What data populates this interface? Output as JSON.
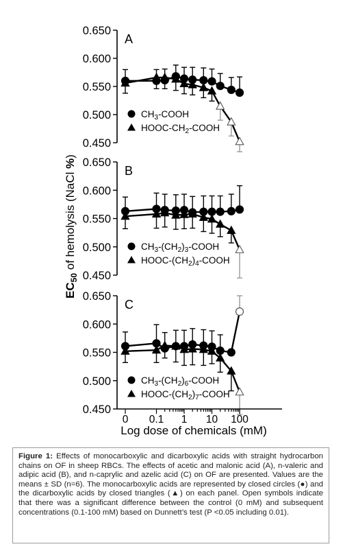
{
  "figure": {
    "ylabel_parts": [
      "EC",
      "50",
      " of hemolysis (NaCl ",
      "%",
      ")"
    ],
    "xlabel": "Log dose of chemicals (mM)",
    "xticks": [
      "0",
      "0.1",
      "1",
      "10",
      "100"
    ]
  },
  "chart_data": [
    {
      "type": "line",
      "panel_label": "A",
      "x": [
        0,
        0.1,
        0.2,
        0.5,
        1,
        2,
        5,
        10,
        20,
        50,
        100
      ],
      "ylim": [
        0.45,
        0.65
      ],
      "yticks": [
        "0.450",
        "0.500",
        "0.550",
        "0.600",
        "0.650"
      ],
      "series": [
        {
          "name": "CH3-COOH",
          "name_parts": [
            [
              "CH",
              ""
            ],
            [
              "3",
              "sub"
            ],
            [
              "-COOH",
              ""
            ]
          ],
          "marker": "circle",
          "values": [
            0.56,
            0.56,
            0.561,
            0.568,
            0.564,
            0.562,
            0.561,
            0.559,
            0.551,
            0.544,
            0.539
          ],
          "errors": [
            0.02,
            0.02,
            0.02,
            0.02,
            0.02,
            0.022,
            0.022,
            0.022,
            0.022,
            0.022,
            0.028
          ],
          "open": [
            false,
            false,
            false,
            false,
            false,
            false,
            false,
            false,
            false,
            false,
            false
          ]
        },
        {
          "name": "HOOC-CH2-COOH",
          "name_parts": [
            [
              "HOOC-CH",
              ""
            ],
            [
              "2",
              "sub"
            ],
            [
              "-COOH",
              ""
            ]
          ],
          "marker": "triangle",
          "values": [
            0.556,
            0.566,
            0.566,
            0.563,
            0.555,
            0.553,
            0.548,
            0.542,
            0.515,
            0.487,
            0.452
          ],
          "errors": [
            0.018,
            0.02,
            0.02,
            0.02,
            0.018,
            0.018,
            0.018,
            0.018,
            0.025,
            0.025,
            0.018
          ],
          "open": [
            false,
            false,
            false,
            false,
            false,
            false,
            false,
            false,
            true,
            true,
            true
          ]
        }
      ]
    },
    {
      "type": "line",
      "panel_label": "B",
      "x": [
        0,
        0.1,
        0.2,
        0.5,
        1,
        2,
        5,
        10,
        20,
        50,
        100
      ],
      "ylim": [
        0.45,
        0.65
      ],
      "yticks": [
        "0.450",
        "0.500",
        "0.550",
        "0.600",
        "0.650"
      ],
      "series": [
        {
          "name": "CH3-(CH2)3-COOH",
          "name_parts": [
            [
              "CH",
              ""
            ],
            [
              "3",
              "sub"
            ],
            [
              "-(CH",
              ""
            ],
            [
              "2",
              "sub"
            ],
            [
              ")",
              ""
            ],
            [
              "3",
              "sub"
            ],
            [
              "-COOH",
              ""
            ]
          ],
          "marker": "circle",
          "values": [
            0.563,
            0.567,
            0.565,
            0.564,
            0.565,
            0.561,
            0.562,
            0.562,
            0.562,
            0.563,
            0.566
          ],
          "errors": [
            0.025,
            0.028,
            0.028,
            0.028,
            0.028,
            0.028,
            0.028,
            0.028,
            0.028,
            0.03,
            0.042
          ],
          "open": [
            false,
            false,
            false,
            false,
            false,
            false,
            false,
            false,
            false,
            false,
            false
          ]
        },
        {
          "name": "HOOC-(CH2)4-COOH",
          "name_parts": [
            [
              "HOOC-(CH",
              ""
            ],
            [
              "2",
              "sub"
            ],
            [
              ")",
              ""
            ],
            [
              "4",
              "sub"
            ],
            [
              "-COOH",
              ""
            ]
          ],
          "marker": "triangle",
          "values": [
            0.554,
            0.558,
            0.56,
            0.556,
            0.557,
            0.558,
            0.552,
            0.549,
            0.54,
            0.529,
            0.495
          ],
          "errors": [
            0.022,
            0.025,
            0.025,
            0.025,
            0.025,
            0.025,
            0.025,
            0.025,
            0.022,
            0.022,
            0.05
          ],
          "open": [
            false,
            false,
            false,
            false,
            false,
            false,
            false,
            false,
            false,
            false,
            true
          ]
        }
      ]
    },
    {
      "type": "line",
      "panel_label": "C",
      "x": [
        0,
        0.1,
        0.2,
        0.5,
        1,
        2,
        5,
        10,
        20,
        50,
        100
      ],
      "ylim": [
        0.45,
        0.65
      ],
      "yticks": [
        "0.450",
        "0.500",
        "0.550",
        "0.600",
        "0.650"
      ],
      "series": [
        {
          "name": "CH3-(CH2)6-COOH",
          "name_parts": [
            [
              "CH",
              ""
            ],
            [
              "3",
              "sub"
            ],
            [
              "-(CH",
              ""
            ],
            [
              "2",
              "sub"
            ],
            [
              ")",
              ""
            ],
            [
              "6",
              "sub"
            ],
            [
              "-COOH",
              ""
            ]
          ],
          "marker": "circle",
          "values": [
            0.561,
            0.566,
            0.557,
            0.561,
            0.561,
            0.564,
            0.562,
            0.56,
            0.553,
            0.55,
            0.622
          ],
          "errors": [
            0.025,
            0.033,
            0.028,
            0.028,
            0.028,
            0.028,
            0.028,
            0.028,
            0.028,
            0.0,
            0.028
          ],
          "open": [
            false,
            false,
            false,
            false,
            false,
            false,
            false,
            false,
            false,
            false,
            true
          ]
        },
        {
          "name": "HOOC-(CH2)7-COOH",
          "name_parts": [
            [
              "HOOC-(CH",
              ""
            ],
            [
              "2",
              "sub"
            ],
            [
              ")",
              ""
            ],
            [
              "7",
              "sub"
            ],
            [
              "-COOH",
              ""
            ]
          ],
          "marker": "triangle",
          "values": [
            0.552,
            0.554,
            0.562,
            0.561,
            0.555,
            0.556,
            0.555,
            0.552,
            0.54,
            0.517,
            0.48
          ],
          "errors": [
            0.02,
            0.022,
            0.022,
            0.028,
            0.028,
            0.028,
            0.028,
            0.022,
            0.025,
            0.035,
            0.04
          ],
          "open": [
            false,
            false,
            false,
            false,
            false,
            false,
            false,
            false,
            false,
            false,
            true
          ]
        }
      ]
    }
  ],
  "caption": {
    "label": "Figure 1:",
    "text": " Effects of monocarboxylic and dicarboxylic acids with straight hydrocarbon chains on OF in sheep RBCs. The effects of acetic and malonic acid (A), n-valeric and adipic acid (B), and n-caprylic and azelic acid (C) on OF are presented. Values are the means ± SD (n=6). The monocarboxylic acids are represented by closed circles (●) and the dicarboxylic acids by closed triangles (▲) on each panel. Open symbols indicate that there was a significant difference between the control (0 mM) and subsequent concentrations (0.1-100 mM) based on Dunnett’s test (P <0.05 including 0.01)."
  }
}
